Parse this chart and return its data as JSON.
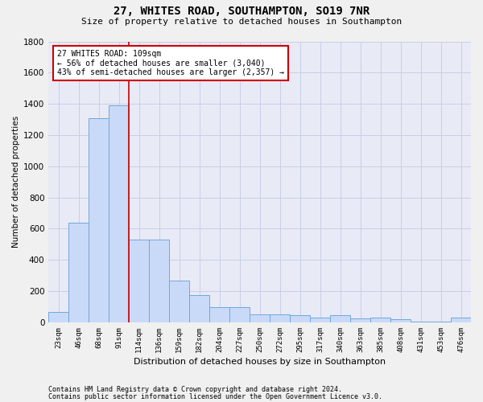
{
  "title1": "27, WHITES ROAD, SOUTHAMPTON, SO19 7NR",
  "title2": "Size of property relative to detached houses in Southampton",
  "xlabel": "Distribution of detached houses by size in Southampton",
  "ylabel": "Number of detached properties",
  "categories": [
    "23sqm",
    "46sqm",
    "68sqm",
    "91sqm",
    "114sqm",
    "136sqm",
    "159sqm",
    "182sqm",
    "204sqm",
    "227sqm",
    "250sqm",
    "272sqm",
    "295sqm",
    "317sqm",
    "340sqm",
    "363sqm",
    "385sqm",
    "408sqm",
    "431sqm",
    "453sqm",
    "476sqm"
  ],
  "values": [
    65,
    640,
    1310,
    1390,
    530,
    530,
    270,
    175,
    100,
    100,
    50,
    50,
    45,
    30,
    45,
    25,
    30,
    20,
    5,
    5,
    30
  ],
  "bar_color": "#c9daf8",
  "bar_edge_color": "#6fa8dc",
  "vline_x": 3.5,
  "vline_color": "#cc0000",
  "annotation_text": "27 WHITES ROAD: 109sqm\n← 56% of detached houses are smaller (3,040)\n43% of semi-detached houses are larger (2,357) →",
  "annotation_box_color": "#ffffff",
  "annotation_box_edge": "#cc0000",
  "ylim": [
    0,
    1800
  ],
  "yticks": [
    0,
    200,
    400,
    600,
    800,
    1000,
    1200,
    1400,
    1600,
    1800
  ],
  "grid_color": "#c8cfe8",
  "bg_color": "#e8eaf6",
  "fig_bg_color": "#f0f0f0",
  "footnote1": "Contains HM Land Registry data © Crown copyright and database right 2024.",
  "footnote2": "Contains public sector information licensed under the Open Government Licence v3.0."
}
